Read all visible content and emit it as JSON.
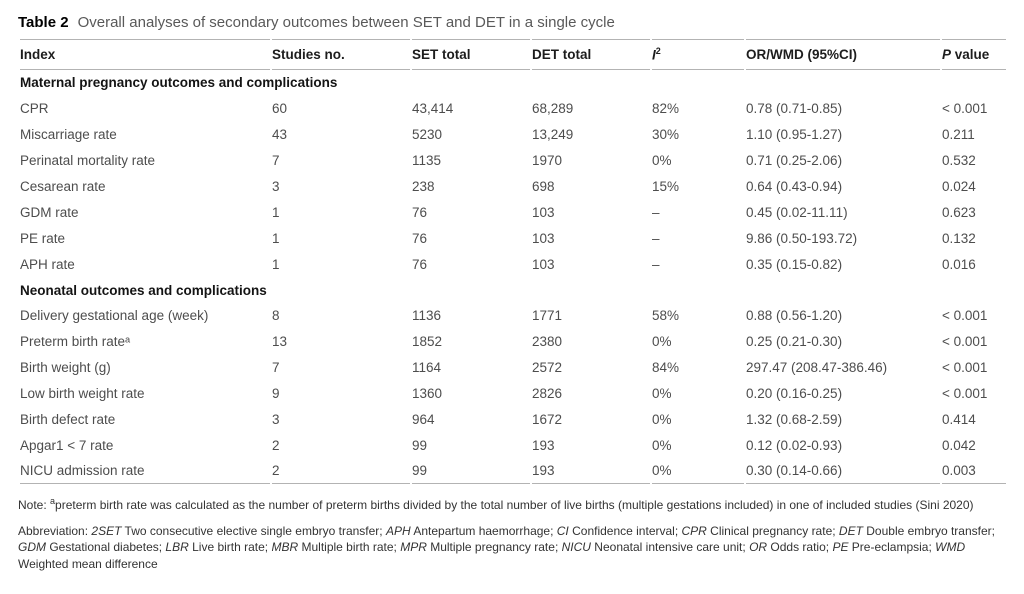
{
  "table": {
    "title_label": "Table 2",
    "title_text": "Overall analyses of secondary outcomes between SET and DET in a single cycle",
    "columns": {
      "index": "Index",
      "studies_no": "Studies no.",
      "set_total": "SET total",
      "det_total": "DET total",
      "i2_base": "I",
      "i2_sup": "2",
      "or_wmd": "OR/WMD (95%CI)",
      "p_italic": "P",
      "p_rest": "value"
    },
    "column_keys": [
      "index",
      "studies-no",
      "set-total",
      "det-total",
      "i2",
      "or-wmd",
      "p-value"
    ],
    "sections": [
      {
        "header": "Maternal pregnancy outcomes and complications",
        "rows": [
          [
            "CPR",
            "60",
            "43,414",
            "68,289",
            "82%",
            "0.78 (0.71-0.85)",
            "< 0.001"
          ],
          [
            "Miscarriage rate",
            "43",
            "5230",
            "13,249",
            "30%",
            "1.10 (0.95-1.27)",
            "0.211"
          ],
          [
            "Perinatal mortality rate",
            "7",
            "1135",
            "1970",
            "0%",
            "0.71 (0.25-2.06)",
            "0.532"
          ],
          [
            "Cesarean rate",
            "3",
            "238",
            "698",
            "15%",
            "0.64 (0.43-0.94)",
            "0.024"
          ],
          [
            "GDM rate",
            "1",
            "76",
            "103",
            "–",
            "0.45 (0.02-11.11)",
            "0.623"
          ],
          [
            "PE rate",
            "1",
            "76",
            "103",
            "–",
            "9.86 (0.50-193.72)",
            "0.132"
          ],
          [
            "APH rate",
            "1",
            "76",
            "103",
            "–",
            "0.35 (0.15-0.82)",
            "0.016"
          ]
        ]
      },
      {
        "header": "Neonatal outcomes and complications",
        "rows": [
          [
            "Delivery gestational age (week)",
            "8",
            "1136",
            "1771",
            "58%",
            "0.88 (0.56-1.20)",
            "< 0.001"
          ],
          [
            "Preterm birth rateᵃ",
            "13",
            "1852",
            "2380",
            "0%",
            "0.25 (0.21-0.30)",
            "< 0.001"
          ],
          [
            "Birth weight (g)",
            "7",
            "1164",
            "2572",
            "84%",
            "297.47 (208.47-386.46)",
            "< 0.001"
          ],
          [
            "Low birth weight rate",
            "9",
            "1360",
            "2826",
            "0%",
            "0.20 (0.16-0.25)",
            "< 0.001"
          ],
          [
            "Birth defect rate",
            "3",
            "964",
            "1672",
            "0%",
            "1.32 (0.68-2.59)",
            "0.414"
          ],
          [
            "Apgar1 < 7 rate",
            "2",
            "99",
            "193",
            "0%",
            "0.12 (0.02-0.93)",
            "0.042"
          ],
          [
            "NICU admission rate",
            "2",
            "99",
            "193",
            "0%",
            "0.30 (0.14-0.66)",
            "0.003"
          ]
        ]
      }
    ]
  },
  "footnotes": {
    "note_label": "Note: ",
    "note_sup": "a",
    "note_text": "preterm birth rate was calculated as the number of preterm births divided by the total number of live births (multiple gestations included) in one of included studies (Sini 2020)",
    "abbreviation_label": "Abbreviation: ",
    "abbreviations": [
      {
        "term": "2SET",
        "def": "Two consecutive elective single embryo transfer"
      },
      {
        "term": "APH",
        "def": "Antepartum haemorrhage"
      },
      {
        "term": "CI",
        "def": "Confidence interval"
      },
      {
        "term": "CPR",
        "def": "Clinical pregnancy rate"
      },
      {
        "term": "DET",
        "def": "Double embryo transfer"
      },
      {
        "term": "GDM",
        "def": "Gestational diabetes"
      },
      {
        "term": "LBR",
        "def": "Live birth rate"
      },
      {
        "term": "MBR",
        "def": "Multiple birth rate"
      },
      {
        "term": "MPR",
        "def": "Multiple pregnancy rate"
      },
      {
        "term": "NICU",
        "def": "Neonatal intensive care unit"
      },
      {
        "term": "OR",
        "def": "Odds ratio"
      },
      {
        "term": "PE",
        "def": "Pre-eclampsia"
      },
      {
        "term": "WMD",
        "def": "Weighted mean difference"
      }
    ],
    "colors": {
      "rule": "#b3b3b3",
      "body_text": "#4d4d4d",
      "heading_text": "#1d1d1d"
    }
  }
}
